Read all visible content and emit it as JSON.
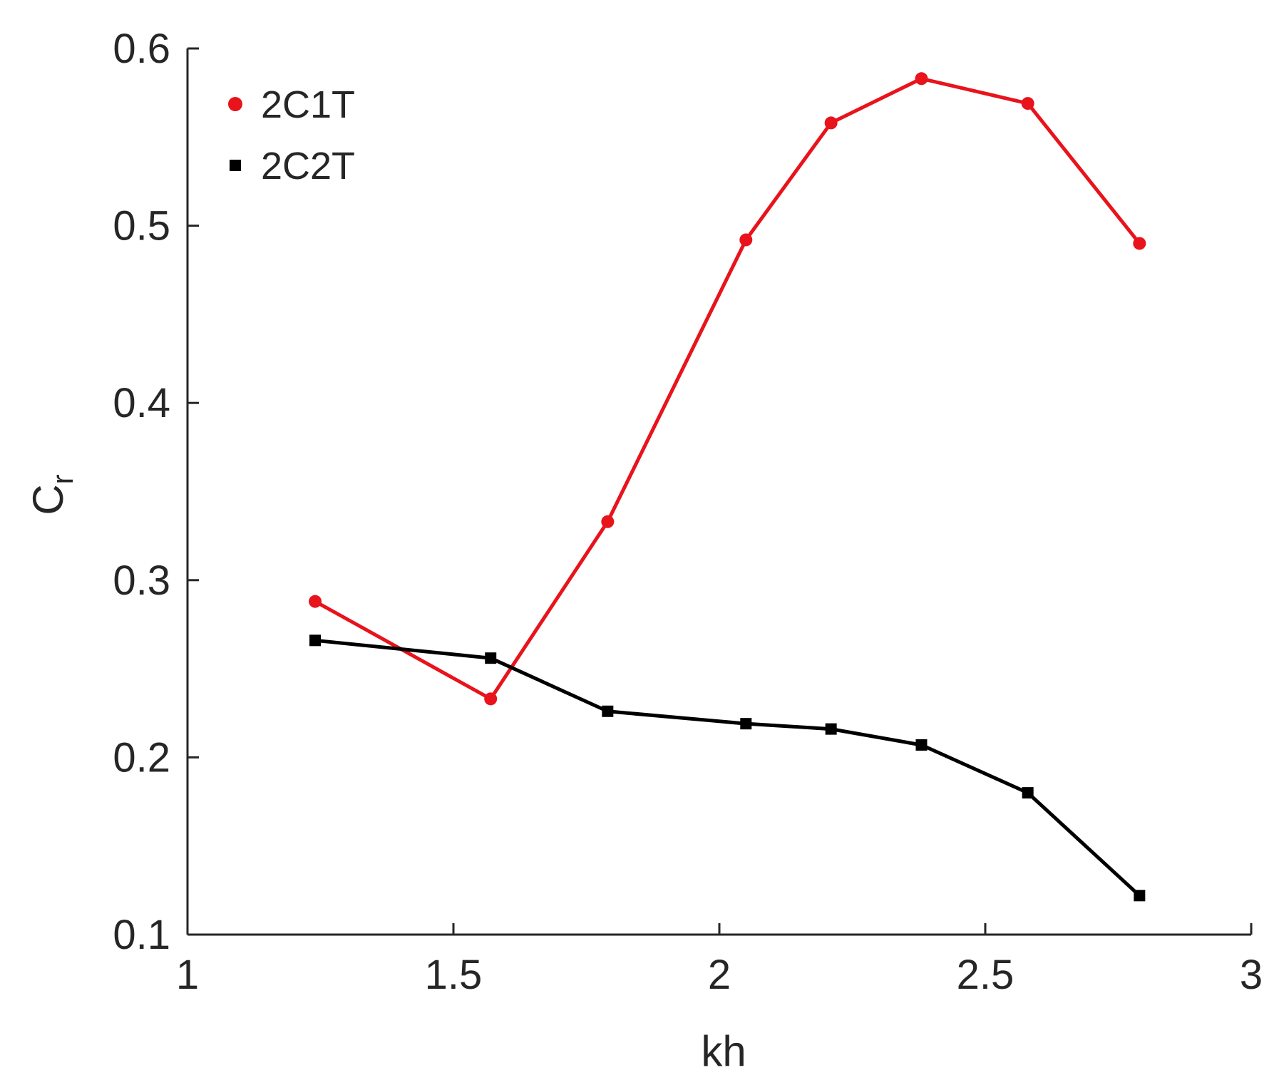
{
  "chart_data": {
    "type": "line",
    "title": "",
    "xlabel": "kh",
    "ylabel": {
      "main": "C",
      "subscript": "r"
    },
    "xlim": [
      1,
      3
    ],
    "ylim": [
      0.1,
      0.6
    ],
    "xticks": [
      1,
      1.5,
      2,
      2.5,
      3
    ],
    "yticks": [
      0.1,
      0.2,
      0.3,
      0.4,
      0.5,
      0.6
    ],
    "xtick_labels": [
      "1",
      "1.5",
      "2",
      "2.5",
      "3"
    ],
    "ytick_labels": [
      "0.1",
      "0.2",
      "0.3",
      "0.4",
      "0.5",
      "0.6"
    ],
    "grid": false,
    "box": "left-bottom axes only",
    "legend": {
      "placement": "top-left"
    },
    "series": [
      {
        "name": "2C1T",
        "color": "#e8131b",
        "marker": "circle",
        "x": [
          1.24,
          1.57,
          1.79,
          2.05,
          2.21,
          2.38,
          2.58,
          2.79
        ],
        "y": [
          0.288,
          0.233,
          0.333,
          0.492,
          0.558,
          0.583,
          0.569,
          0.49
        ]
      },
      {
        "name": "2C2T",
        "color": "#000000",
        "marker": "square",
        "x": [
          1.24,
          1.57,
          1.79,
          2.05,
          2.21,
          2.38,
          2.58,
          2.79
        ],
        "y": [
          0.266,
          0.256,
          0.226,
          0.219,
          0.216,
          0.207,
          0.18,
          0.122
        ]
      }
    ]
  }
}
